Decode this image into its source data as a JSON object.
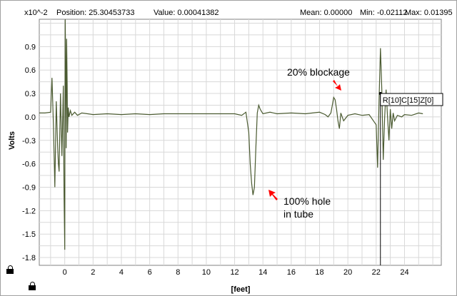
{
  "status_bar": {
    "scale": "x10^-2",
    "position": "Position: 25.30453733",
    "value": "Value: 0.00041382",
    "mean": "Mean: 0.00000",
    "min": "Min: -0.02112",
    "max": "Max: 0.01395"
  },
  "cursor_label": "R[10]C[15]Z[0]",
  "icons": [
    "lock-icon",
    "lock-icon"
  ],
  "colors": {
    "trace": "#4a5a30",
    "grid": "#d8d8d8",
    "arrow": "#ff0000"
  },
  "chart_data": {
    "type": "line",
    "xlabel": "[feet]",
    "ylabel": "Volts",
    "xlim": [
      -1.8,
      26.6
    ],
    "ylim": [
      -1.9,
      1.25
    ],
    "x_ticks": [
      0,
      2,
      4,
      6,
      8,
      10,
      12,
      14,
      16,
      18,
      20,
      22,
      24
    ],
    "y_ticks": [
      0.9,
      0.6,
      0.3,
      0.0,
      -0.3,
      -0.6,
      -0.9,
      -1.2,
      -1.5,
      -1.8
    ],
    "y_tick_labels": [
      "0.9",
      "0.6",
      "0.3",
      "0.0",
      "-0.3",
      "-0.6",
      "-0.9",
      "-1.2",
      "-1.5",
      "-1.8"
    ],
    "grid": true,
    "series": [
      {
        "x": [
          -1.8,
          -1.4,
          -1.0,
          -0.9,
          -0.8,
          -0.7,
          -0.6,
          -0.5,
          -0.45,
          -0.4,
          -0.3,
          -0.2,
          -0.1,
          -0.05,
          0.0,
          0.03,
          0.07,
          0.1,
          0.13,
          0.17,
          0.2,
          0.25,
          0.3,
          0.4,
          0.5,
          0.7,
          0.9,
          1.2,
          2.0,
          3.0,
          4.0,
          5.0,
          6.0,
          7.0,
          8.0,
          9.0,
          10.0,
          11.0,
          12.0,
          12.5,
          12.8,
          13.0,
          13.1,
          13.2,
          13.3,
          13.4,
          13.5,
          13.6,
          13.7,
          13.8,
          13.9,
          14.0,
          14.5,
          15.0,
          16.0,
          17.0,
          18.0,
          18.4,
          18.6,
          18.8,
          18.9,
          19.0,
          19.1,
          19.2,
          19.3,
          19.4,
          19.5,
          19.7,
          20.0,
          20.5,
          21.0,
          21.5,
          22.0,
          22.1,
          22.2,
          22.3,
          22.4,
          22.5,
          22.6,
          22.7,
          22.8,
          22.9,
          23.0,
          23.1,
          23.2,
          23.3,
          23.5,
          23.8,
          24.0,
          24.5,
          25.0,
          25.3
        ],
        "y": [
          0.05,
          0.05,
          0.06,
          0.5,
          -0.1,
          -0.9,
          0.2,
          -0.4,
          -0.6,
          -0.7,
          0.3,
          -0.5,
          0.4,
          -1.0,
          -1.7,
          1.25,
          0.6,
          -0.4,
          1.0,
          0.4,
          -0.2,
          0.12,
          0.0,
          0.08,
          0.02,
          0.06,
          0.02,
          0.05,
          0.03,
          0.04,
          0.03,
          0.04,
          0.03,
          0.04,
          0.04,
          0.04,
          0.04,
          0.04,
          0.04,
          0.02,
          0.06,
          -0.2,
          -0.6,
          -0.85,
          -1.0,
          -0.9,
          -0.4,
          0.05,
          0.15,
          0.1,
          0.07,
          0.04,
          0.06,
          0.04,
          0.05,
          0.04,
          0.06,
          0.03,
          0.0,
          0.05,
          0.15,
          0.25,
          0.22,
          0.1,
          -0.05,
          -0.15,
          0.05,
          -0.05,
          0.02,
          0.04,
          0.02,
          0.03,
          -0.1,
          -0.65,
          0.2,
          0.88,
          0.35,
          -0.55,
          0.0,
          0.35,
          0.0,
          -0.3,
          0.1,
          -0.15,
          0.05,
          -0.05,
          0.02,
          0.0,
          0.03,
          0.02,
          0.05,
          0.04
        ]
      }
    ],
    "annotations": [
      {
        "text": "20% blockage",
        "x": 18.8,
        "y": 0.28
      },
      {
        "text": "100% hole",
        "x": 13.5,
        "y": -1.02
      },
      {
        "text": "in tube",
        "x": 13.5,
        "y": -1.02
      }
    ],
    "cursor": {
      "x": 22.3,
      "y": 0.3
    }
  }
}
